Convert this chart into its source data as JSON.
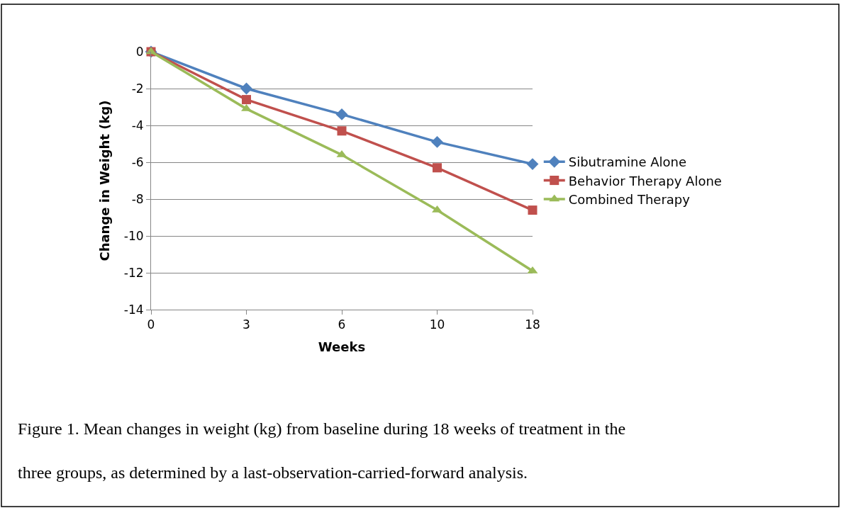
{
  "chart_data": {
    "type": "line",
    "xlabel": "Weeks",
    "ylabel": "Change in Weight (kg)",
    "categories": [
      "0",
      "3",
      "6",
      "10",
      "18"
    ],
    "series": [
      {
        "name": "Sibutramine Alone",
        "color": "#4f81bd",
        "marker": "diamond",
        "values": [
          0,
          -2.0,
          -3.4,
          -4.9,
          -6.1
        ]
      },
      {
        "name": "Behavior Therapy Alone",
        "color": "#c0504d",
        "marker": "square",
        "values": [
          0,
          -2.6,
          -4.3,
          -6.3,
          -8.6
        ]
      },
      {
        "name": "Combined Therapy",
        "color": "#9bbb59",
        "marker": "triangle",
        "values": [
          0,
          -3.1,
          -5.6,
          -8.6,
          -11.9
        ]
      }
    ],
    "ylim": [
      -14,
      0
    ],
    "yticks": [
      0,
      -2,
      -4,
      -6,
      -8,
      -10,
      -12,
      -14
    ],
    "grid": "y",
    "legend": "right",
    "annotations": [
      "Figure 1. Mean changes in weight (kg) from baseline during 18 weeks of treatment in the three groups, as determined by a last-observation-carried-forward analysis."
    ]
  }
}
